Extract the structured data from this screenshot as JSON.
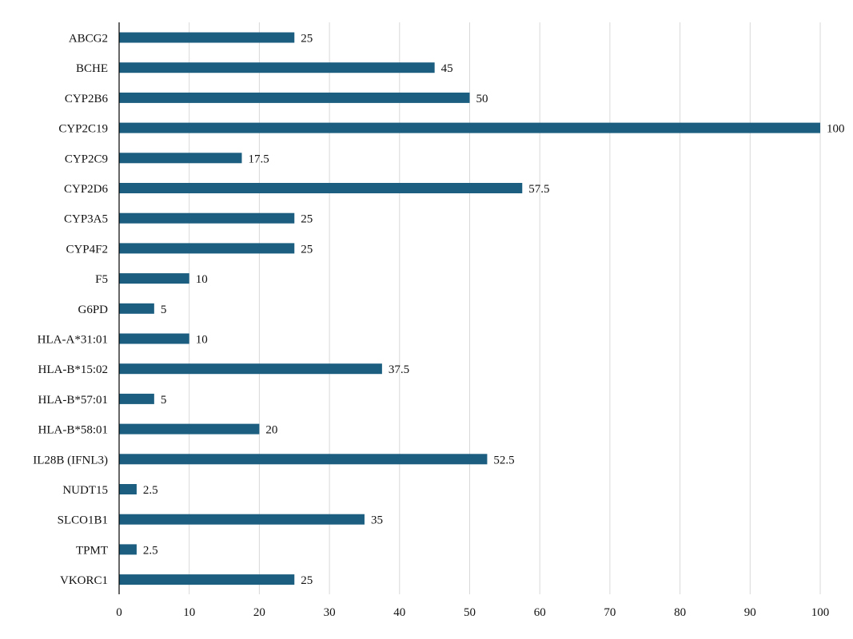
{
  "chart_data": {
    "type": "bar",
    "orientation": "horizontal",
    "title": "",
    "xlabel": "",
    "ylabel": "",
    "xlim": [
      0,
      100
    ],
    "x_ticks": [
      0,
      10,
      20,
      30,
      40,
      50,
      60,
      70,
      80,
      90,
      100
    ],
    "grid": "vertical",
    "legend": "none",
    "bar_color": "#1b5e80",
    "categories": [
      "ABCG2",
      "BCHE",
      "CYP2B6",
      "CYP2C19",
      "CYP2C9",
      "CYP2D6",
      "CYP3A5",
      "CYP4F2",
      "F5",
      "G6PD",
      "HLA-A*31:01",
      "HLA-B*15:02",
      "HLA-B*57:01",
      "HLA-B*58:01",
      "IL28B (IFNL3)",
      "NUDT15",
      "SLCO1B1",
      "TPMT",
      "VKORC1"
    ],
    "values": [
      25,
      45,
      50,
      100,
      17.5,
      57.5,
      25,
      25,
      10,
      5,
      10,
      37.5,
      5,
      20,
      52.5,
      2.5,
      35,
      2.5,
      25
    ]
  }
}
